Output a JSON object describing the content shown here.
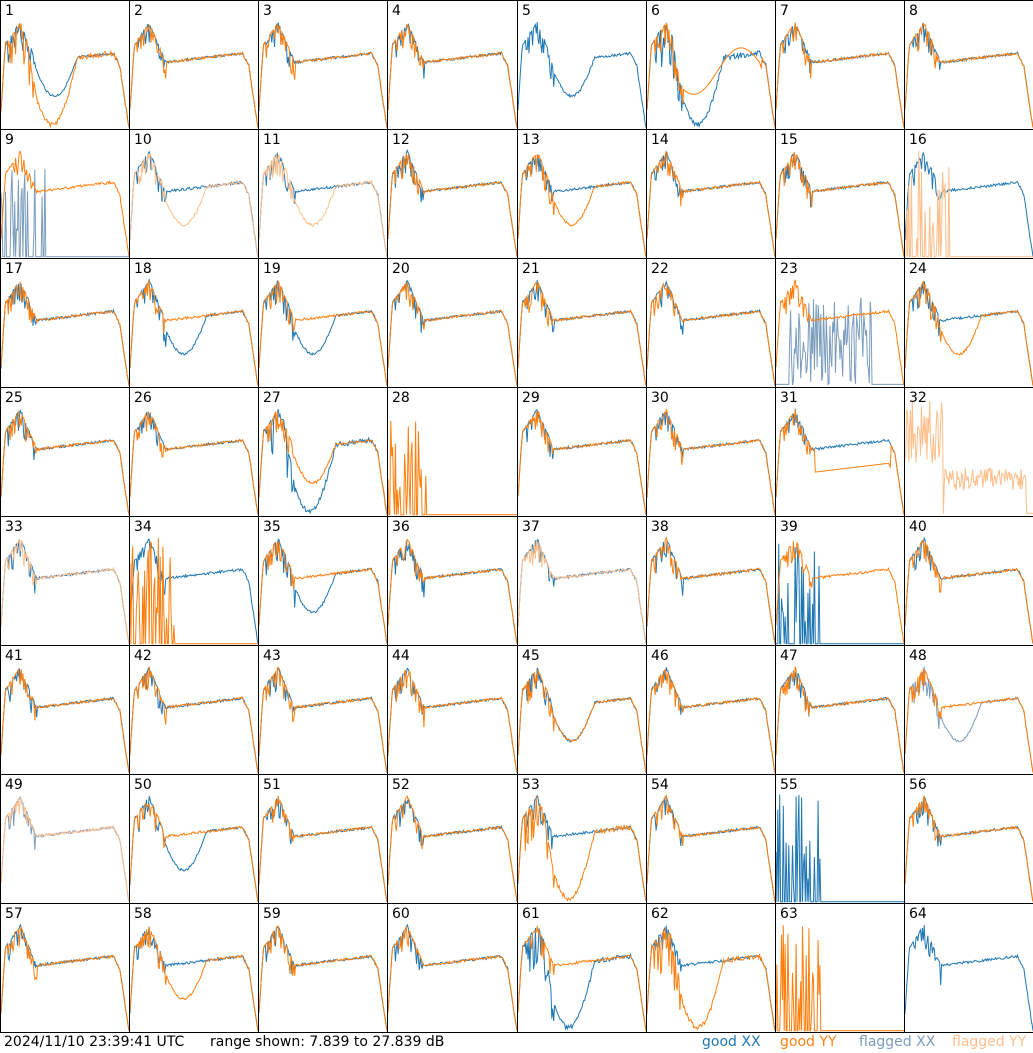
{
  "timestamp": "2024/11/10 23:39:41 UTC",
  "range_text": "range shown: 7.839 to 27.839 dB",
  "legend": [
    {
      "label": "good XX",
      "color": "#1f77b4"
    },
    {
      "label": "good YY",
      "color": "#ff7f0e"
    },
    {
      "label": "flagged XX",
      "color": "#7a9cbd"
    },
    {
      "label": "flagged YY",
      "color": "#ffbe8a"
    }
  ],
  "chart_data": {
    "type": "line",
    "title": "",
    "ylim": [
      7.839,
      27.839
    ],
    "unit": "dB",
    "grid": false,
    "rows": 8,
    "cols": 8,
    "series_names": [
      "good XX",
      "good YY",
      "flagged XX",
      "flagged YY"
    ],
    "panels": [
      {
        "label": "1",
        "xx": "dip",
        "yy": "deepdip",
        "xxf": false,
        "yyf": false
      },
      {
        "label": "2",
        "xx": "flat",
        "yy": "flat",
        "xxf": false,
        "yyf": false
      },
      {
        "label": "3",
        "xx": "flat",
        "yy": "flat",
        "xxf": false,
        "yyf": false
      },
      {
        "label": "4",
        "xx": "flat",
        "yy": "flat",
        "xxf": false,
        "yyf": false
      },
      {
        "label": "5",
        "xx": "dip",
        "yy": "none",
        "xxf": false,
        "yyf": false
      },
      {
        "label": "6",
        "xx": "deepdip",
        "yy": "wave",
        "xxf": false,
        "yyf": false
      },
      {
        "label": "7",
        "xx": "flat",
        "yy": "flat",
        "xxf": false,
        "yyf": false
      },
      {
        "label": "8",
        "xx": "flat",
        "yy": "flat",
        "xxf": false,
        "yyf": false
      },
      {
        "label": "9",
        "xx": "spikes",
        "yy": "flat",
        "xxf": true,
        "yyf": false
      },
      {
        "label": "10",
        "xx": "flat",
        "yy": "dip",
        "xxf": false,
        "yyf": true
      },
      {
        "label": "11",
        "xx": "flat",
        "yy": "dip",
        "xxf": false,
        "yyf": true
      },
      {
        "label": "12",
        "xx": "flat",
        "yy": "flat",
        "xxf": false,
        "yyf": false
      },
      {
        "label": "13",
        "xx": "flat",
        "yy": "dip",
        "xxf": false,
        "yyf": false
      },
      {
        "label": "14",
        "xx": "flat",
        "yy": "flat",
        "xxf": false,
        "yyf": false
      },
      {
        "label": "15",
        "xx": "flat",
        "yy": "flat",
        "xxf": false,
        "yyf": false
      },
      {
        "label": "16",
        "xx": "flat",
        "yy": "spikes",
        "xxf": false,
        "yyf": true
      },
      {
        "label": "17",
        "xx": "flat",
        "yy": "flat",
        "xxf": false,
        "yyf": false
      },
      {
        "label": "18",
        "xx": "dip",
        "yy": "flat",
        "xxf": false,
        "yyf": false
      },
      {
        "label": "19",
        "xx": "dip",
        "yy": "flat",
        "xxf": false,
        "yyf": false
      },
      {
        "label": "20",
        "xx": "flat",
        "yy": "flat",
        "xxf": false,
        "yyf": false
      },
      {
        "label": "21",
        "xx": "flat",
        "yy": "flat",
        "xxf": false,
        "yyf": false
      },
      {
        "label": "22",
        "xx": "flat",
        "yy": "flat",
        "xxf": false,
        "yyf": false
      },
      {
        "label": "23",
        "xx": "noisy",
        "yy": "flat",
        "xxf": true,
        "yyf": false
      },
      {
        "label": "24",
        "xx": "flat",
        "yy": "dip",
        "xxf": false,
        "yyf": false
      },
      {
        "label": "25",
        "xx": "flat",
        "yy": "flat",
        "xxf": false,
        "yyf": false
      },
      {
        "label": "26",
        "xx": "flat",
        "yy": "flat",
        "xxf": false,
        "yyf": false
      },
      {
        "label": "27",
        "xx": "deepdip",
        "yy": "dip",
        "xxf": false,
        "yyf": false
      },
      {
        "label": "28",
        "xx": "none",
        "yy": "spikes",
        "xxf": false,
        "yyf": false
      },
      {
        "label": "29",
        "xx": "flat",
        "yy": "flat",
        "xxf": false,
        "yyf": false
      },
      {
        "label": "30",
        "xx": "flat",
        "yy": "flat",
        "xxf": false,
        "yyf": false
      },
      {
        "label": "31",
        "xx": "flat",
        "yy": "low",
        "xxf": false,
        "yyf": false
      },
      {
        "label": "32",
        "xx": "none",
        "yy": "noisylow",
        "xxf": false,
        "yyf": true
      },
      {
        "label": "33",
        "xx": "flat",
        "yy": "flat",
        "xxf": false,
        "yyf": true
      },
      {
        "label": "34",
        "xx": "flat",
        "yy": "spikes",
        "xxf": false,
        "yyf": false
      },
      {
        "label": "35",
        "xx": "dip",
        "yy": "flat",
        "xxf": false,
        "yyf": false
      },
      {
        "label": "36",
        "xx": "flat",
        "yy": "flat",
        "xxf": false,
        "yyf": false
      },
      {
        "label": "37",
        "xx": "flat",
        "yy": "flat",
        "xxf": false,
        "yyf": true
      },
      {
        "label": "38",
        "xx": "flat",
        "yy": "flat",
        "xxf": false,
        "yyf": false
      },
      {
        "label": "39",
        "xx": "spikes",
        "yy": "flat",
        "xxf": false,
        "yyf": false
      },
      {
        "label": "40",
        "xx": "flat",
        "yy": "flat",
        "xxf": false,
        "yyf": false
      },
      {
        "label": "41",
        "xx": "flat",
        "yy": "flat",
        "xxf": false,
        "yyf": false
      },
      {
        "label": "42",
        "xx": "flat",
        "yy": "flat",
        "xxf": false,
        "yyf": false
      },
      {
        "label": "43",
        "xx": "flat",
        "yy": "flat",
        "xxf": false,
        "yyf": false
      },
      {
        "label": "44",
        "xx": "flat",
        "yy": "flat",
        "xxf": false,
        "yyf": false
      },
      {
        "label": "45",
        "xx": "dip",
        "yy": "dip",
        "xxf": false,
        "yyf": false
      },
      {
        "label": "46",
        "xx": "flat",
        "yy": "flat",
        "xxf": false,
        "yyf": false
      },
      {
        "label": "47",
        "xx": "flat",
        "yy": "flat",
        "xxf": false,
        "yyf": false
      },
      {
        "label": "48",
        "xx": "dip",
        "yy": "flat",
        "xxf": true,
        "yyf": false
      },
      {
        "label": "49",
        "xx": "flat",
        "yy": "flat",
        "xxf": true,
        "yyf": true
      },
      {
        "label": "50",
        "xx": "dip",
        "yy": "flat",
        "xxf": false,
        "yyf": false
      },
      {
        "label": "51",
        "xx": "flat",
        "yy": "flat",
        "xxf": false,
        "yyf": false
      },
      {
        "label": "52",
        "xx": "flat",
        "yy": "flat",
        "xxf": false,
        "yyf": false
      },
      {
        "label": "53",
        "xx": "flat",
        "yy": "deepdip",
        "xxf": false,
        "yyf": false
      },
      {
        "label": "54",
        "xx": "flat",
        "yy": "flat",
        "xxf": false,
        "yyf": false
      },
      {
        "label": "55",
        "xx": "spikes",
        "yy": "none",
        "xxf": false,
        "yyf": false
      },
      {
        "label": "56",
        "xx": "flat",
        "yy": "flat",
        "xxf": false,
        "yyf": false
      },
      {
        "label": "57",
        "xx": "flat",
        "yy": "flat",
        "xxf": false,
        "yyf": false
      },
      {
        "label": "58",
        "xx": "flat",
        "yy": "dip",
        "xxf": false,
        "yyf": false
      },
      {
        "label": "59",
        "xx": "flat",
        "yy": "flat",
        "xxf": false,
        "yyf": false
      },
      {
        "label": "60",
        "xx": "flat",
        "yy": "flat",
        "xxf": false,
        "yyf": false
      },
      {
        "label": "61",
        "xx": "deepdip",
        "yy": "flat",
        "xxf": false,
        "yyf": false
      },
      {
        "label": "62",
        "xx": "flat",
        "yy": "deepdip",
        "xxf": false,
        "yyf": false
      },
      {
        "label": "63",
        "xx": "none",
        "yy": "spikes",
        "xxf": false,
        "yyf": false
      },
      {
        "label": "64",
        "xx": "flat",
        "yy": "none",
        "xxf": false,
        "yyf": true
      }
    ]
  }
}
